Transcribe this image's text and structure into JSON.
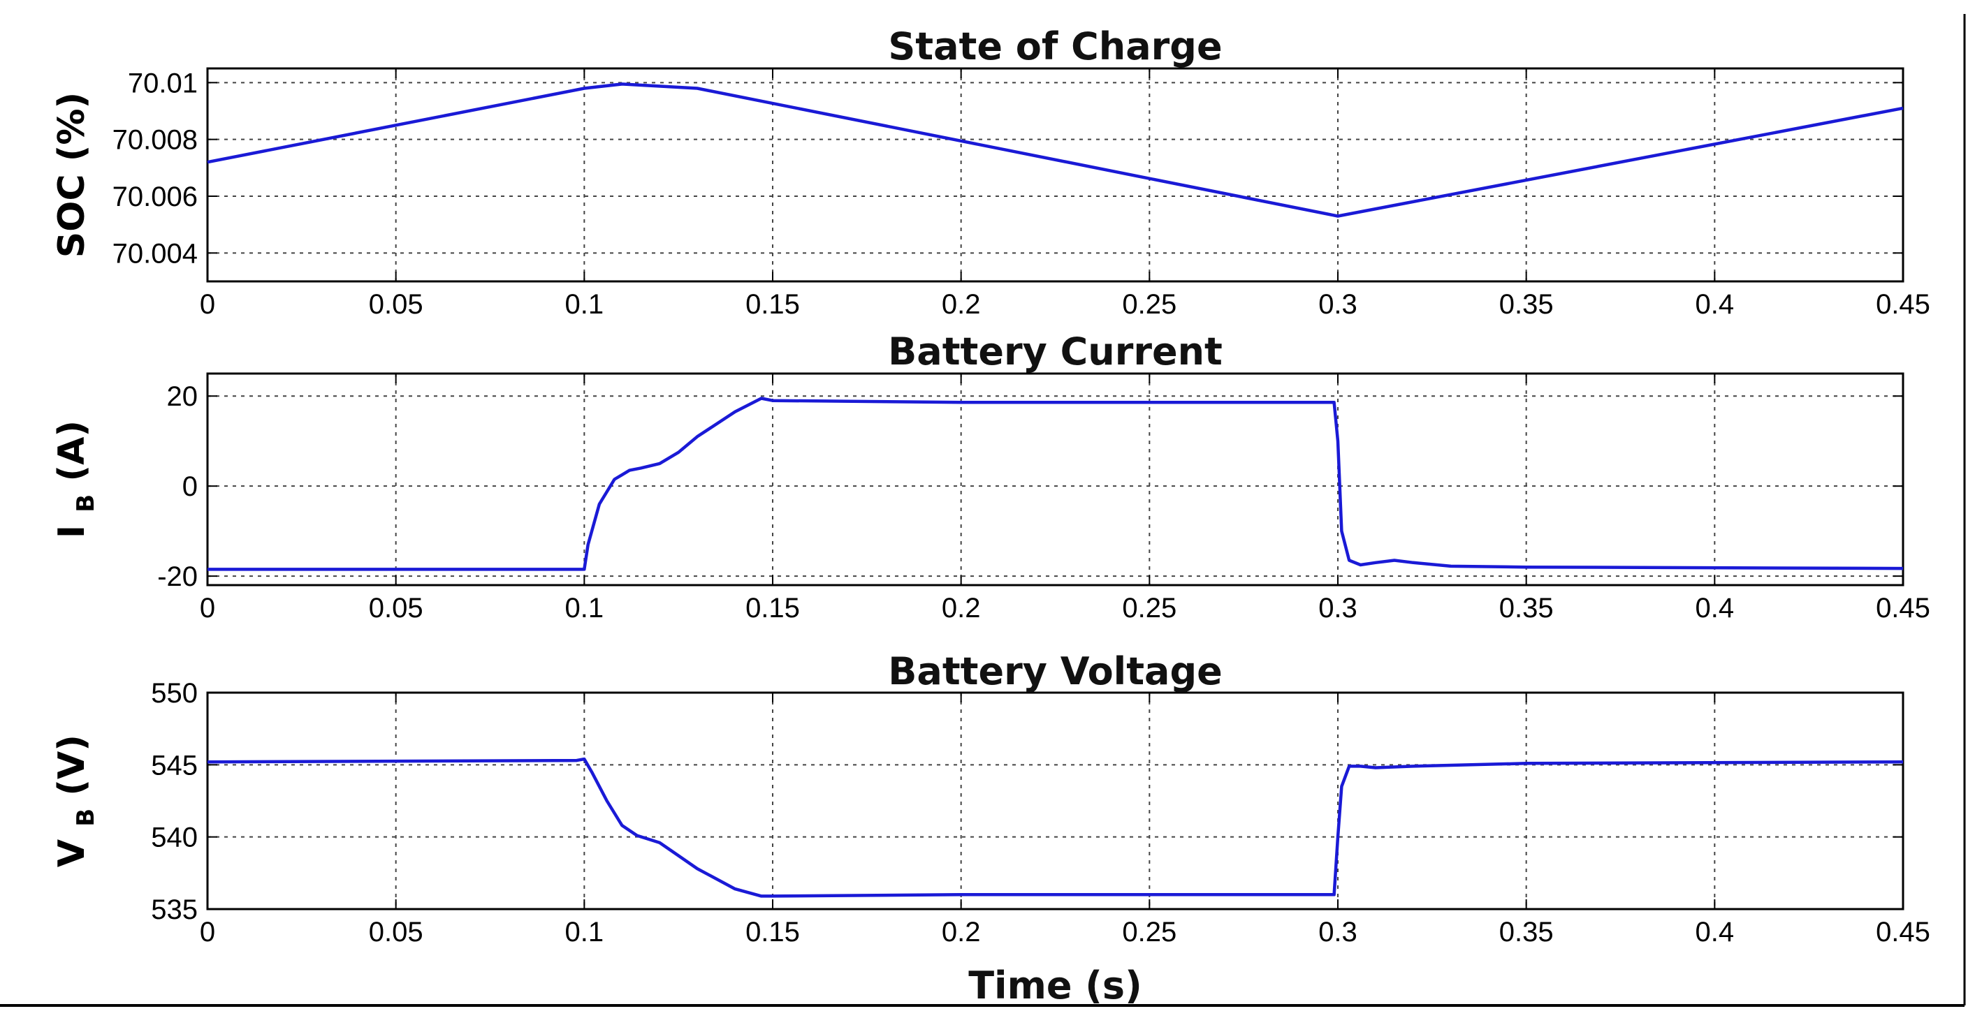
{
  "colors": {
    "series": "#1a1ad6",
    "background": "#ffffff",
    "axes": "#000000"
  },
  "chart_data": [
    {
      "type": "line",
      "title": "State of Charge",
      "ylabel": "SOC (%)",
      "xlabel": "",
      "xlim": [
        0,
        0.45
      ],
      "ylim": [
        70.003,
        70.0105
      ],
      "xticks": [
        "0",
        "0.05",
        "0.1",
        "0.15",
        "0.2",
        "0.25",
        "0.3",
        "0.35",
        "0.4",
        "0.45"
      ],
      "yticks": [
        "70.004",
        "70.006",
        "70.008",
        "70.01"
      ],
      "grid": true,
      "series": [
        {
          "x": [
            0,
            0.1,
            0.11,
            0.13,
            0.3,
            0.45
          ],
          "y": [
            70.0072,
            70.0098,
            70.00995,
            70.0098,
            70.0053,
            70.0091
          ]
        }
      ]
    },
    {
      "type": "line",
      "title": "Battery Current",
      "ylabel": "I_B (A)",
      "ylabel_main": "I",
      "ylabel_sub": "B",
      "ylabel_unit": "(A)",
      "xlabel": "",
      "xlim": [
        0,
        0.45
      ],
      "ylim": [
        -22,
        25
      ],
      "xticks": [
        "0",
        "0.05",
        "0.1",
        "0.15",
        "0.2",
        "0.25",
        "0.3",
        "0.35",
        "0.4",
        "0.45"
      ],
      "yticks": [
        "-20",
        "0",
        "20"
      ],
      "grid": true,
      "series": [
        {
          "x": [
            0,
            0.1,
            0.101,
            0.104,
            0.108,
            0.112,
            0.115,
            0.12,
            0.125,
            0.13,
            0.14,
            0.147,
            0.15,
            0.2,
            0.299,
            0.3,
            0.301,
            0.303,
            0.306,
            0.31,
            0.315,
            0.32,
            0.33,
            0.35,
            0.45
          ],
          "y": [
            -18.5,
            -18.5,
            -13,
            -4,
            1.5,
            3.5,
            4,
            5,
            7.5,
            11,
            16.5,
            19.5,
            19,
            18.6,
            18.6,
            10,
            -10,
            -16.5,
            -17.5,
            -17,
            -16.5,
            -17,
            -17.8,
            -18,
            -18.3
          ]
        }
      ]
    },
    {
      "type": "line",
      "title": "Battery Voltage",
      "ylabel": "V_B (V)",
      "ylabel_main": "V",
      "ylabel_sub": "B",
      "ylabel_unit": "(V)",
      "xlabel": "Time (s)",
      "xlim": [
        0,
        0.45
      ],
      "ylim": [
        535,
        550
      ],
      "xticks": [
        "0",
        "0.05",
        "0.1",
        "0.15",
        "0.2",
        "0.25",
        "0.3",
        "0.35",
        "0.4",
        "0.45"
      ],
      "yticks": [
        "535",
        "540",
        "545",
        "550"
      ],
      "grid": true,
      "series": [
        {
          "x": [
            0,
            0.098,
            0.1,
            0.102,
            0.106,
            0.11,
            0.114,
            0.12,
            0.125,
            0.13,
            0.14,
            0.147,
            0.15,
            0.2,
            0.299,
            0.3,
            0.301,
            0.303,
            0.306,
            0.31,
            0.32,
            0.35,
            0.45
          ],
          "y": [
            545.2,
            545.3,
            545.4,
            544.5,
            542.5,
            540.8,
            540.1,
            539.6,
            538.7,
            537.8,
            536.4,
            535.9,
            535.9,
            536,
            536,
            540,
            543.5,
            544.9,
            544.9,
            544.8,
            544.9,
            545.1,
            545.2
          ]
        }
      ]
    }
  ]
}
